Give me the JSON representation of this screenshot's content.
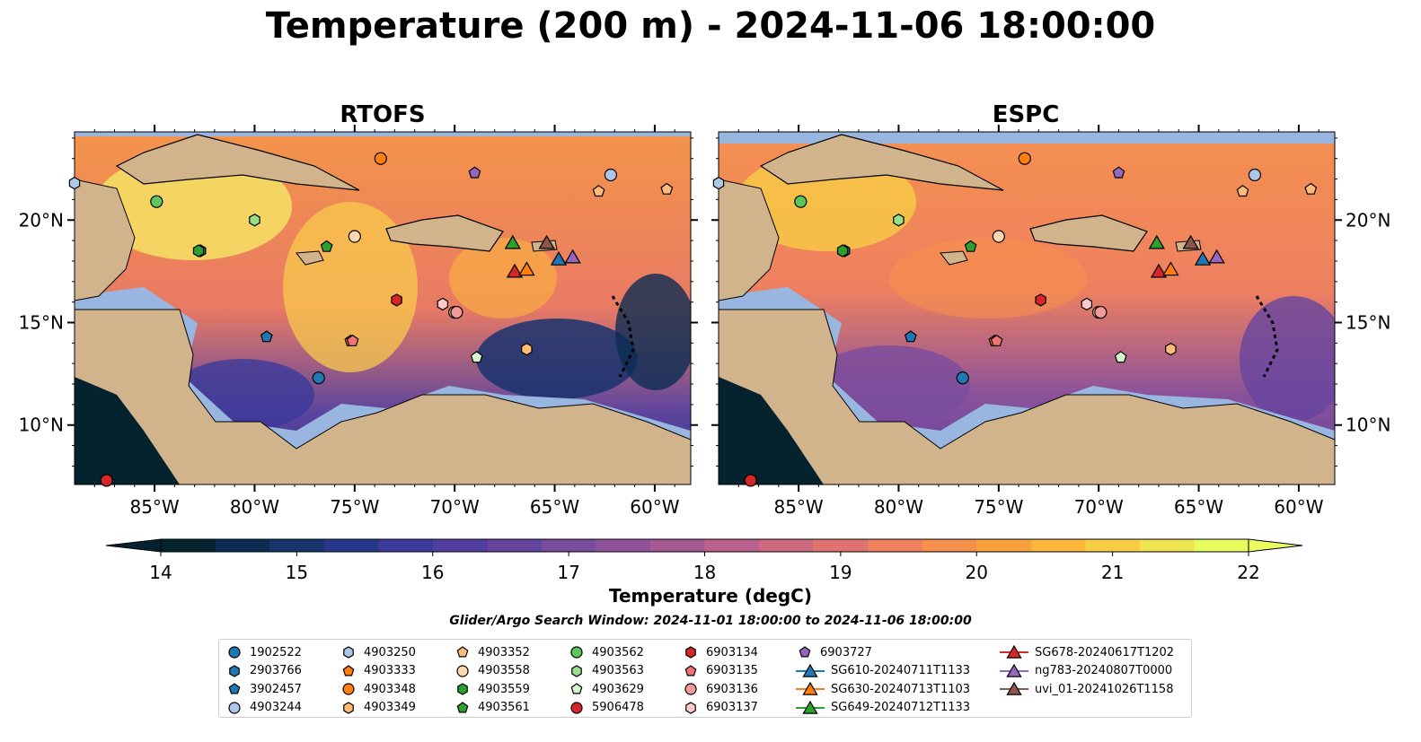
{
  "title": "Temperature (200 m) - 2024-11-06 18:00:00",
  "panels": [
    {
      "name": "RTOFS"
    },
    {
      "name": "ESPC"
    }
  ],
  "axes": {
    "lon_ticks": [
      "85°W",
      "80°W",
      "75°W",
      "70°W",
      "65°W",
      "60°W"
    ],
    "lat_ticks": [
      "20°N",
      "15°N",
      "10°N"
    ],
    "lon_range": [
      -89,
      -58.2
    ],
    "lat_range": [
      7.1,
      24.3
    ]
  },
  "colorbar": {
    "label": "Temperature (degC)",
    "ticks": [
      "14",
      "15",
      "16",
      "17",
      "18",
      "19",
      "20",
      "21",
      "22"
    ],
    "range": [
      14,
      22
    ],
    "extend": "both",
    "colormap": "thermal",
    "colors": [
      "#04232f",
      "#0b2d52",
      "#19336f",
      "#27388a",
      "#3b3a9a",
      "#513f9f",
      "#66459f",
      "#7a4c9d",
      "#8f539a",
      "#a55a95",
      "#ba618d",
      "#ce6a80",
      "#e07370",
      "#ee805e",
      "#f6904c",
      "#fba23f",
      "#fcb63c",
      "#f8cc45",
      "#f0e356",
      "#e8fc61"
    ]
  },
  "search_window": "Glider/Argo Search Window: 2024-11-01 18:00:00 to 2024-11-06 18:00:00",
  "legend": [
    {
      "label": "1902522",
      "marker": "circle",
      "color": "#1f77b4"
    },
    {
      "label": "2903766",
      "marker": "hexagon",
      "color": "#1f77b4"
    },
    {
      "label": "3902457",
      "marker": "pentagon",
      "color": "#1f77b4"
    },
    {
      "label": "4903244",
      "marker": "circle",
      "color": "#aec7e8"
    },
    {
      "label": "4903250",
      "marker": "hexagon",
      "color": "#aec7e8"
    },
    {
      "label": "4903333",
      "marker": "pentagon",
      "color": "#ff7f0e"
    },
    {
      "label": "4903348",
      "marker": "circle",
      "color": "#ff7f0e"
    },
    {
      "label": "4903349",
      "marker": "hexagon",
      "color": "#ffbb78"
    },
    {
      "label": "4903352",
      "marker": "pentagon",
      "color": "#ffbb78"
    },
    {
      "label": "4903558",
      "marker": "circle",
      "color": "#ffd8b1"
    },
    {
      "label": "4903559",
      "marker": "hexagon",
      "color": "#2ca02c"
    },
    {
      "label": "4903561",
      "marker": "pentagon",
      "color": "#2ca02c"
    },
    {
      "label": "4903562",
      "marker": "circle",
      "color": "#5cc85c"
    },
    {
      "label": "4903563",
      "marker": "hexagon",
      "color": "#98df8a"
    },
    {
      "label": "4903629",
      "marker": "pentagon",
      "color": "#d4f5cc"
    },
    {
      "label": "5906478",
      "marker": "circle",
      "color": "#d62728"
    },
    {
      "label": "6903134",
      "marker": "hexagon",
      "color": "#d62728"
    },
    {
      "label": "6903135",
      "marker": "pentagon",
      "color": "#f07474"
    },
    {
      "label": "6903136",
      "marker": "circle",
      "color": "#f59a9a"
    },
    {
      "label": "6903137",
      "marker": "hexagon",
      "color": "#ffc8c8"
    },
    {
      "label": "6903727",
      "marker": "pentagon",
      "color": "#9467bd"
    },
    {
      "label": "SG610-20240711T1133",
      "marker": "triangle-line",
      "color": "#1f77b4"
    },
    {
      "label": "SG630-20240713T1103",
      "marker": "triangle-line",
      "color": "#ff7f0e"
    },
    {
      "label": "SG649-20240712T1133",
      "marker": "triangle-line",
      "color": "#2ca02c"
    },
    {
      "label": "SG678-20240617T1202",
      "marker": "triangle-line",
      "color": "#d62728"
    },
    {
      "label": "ng783-20240807T0000",
      "marker": "triangle-line",
      "color": "#9467bd"
    },
    {
      "label": "uvi_01-20241026T1158",
      "marker": "triangle-line",
      "color": "#8c564b"
    }
  ],
  "observations": [
    {
      "id": "1902522",
      "lon": -76.8,
      "lat": 12.3
    },
    {
      "id": "2903766",
      "lon": -82.7,
      "lat": 18.5
    },
    {
      "id": "3902457",
      "lon": -79.4,
      "lat": 14.3
    },
    {
      "id": "4903244",
      "lon": -62.2,
      "lat": 22.2
    },
    {
      "id": "4903250",
      "lon": -89.0,
      "lat": 21.8
    },
    {
      "id": "4903333",
      "lon": -75.2,
      "lat": 14.1
    },
    {
      "id": "4903348",
      "lon": -73.7,
      "lat": 23.0
    },
    {
      "id": "4903349",
      "lon": -66.4,
      "lat": 13.7
    },
    {
      "id": "4903352",
      "lon": -62.8,
      "lat": 21.4
    },
    {
      "id": "4903352",
      "lon": -59.4,
      "lat": 21.5
    },
    {
      "id": "4903558",
      "lon": -75.0,
      "lat": 19.2
    },
    {
      "id": "4903558",
      "lon": -70.0,
      "lat": 15.5
    },
    {
      "id": "4903559",
      "lon": -82.8,
      "lat": 18.5
    },
    {
      "id": "4903561",
      "lon": -76.4,
      "lat": 18.7
    },
    {
      "id": "4903562",
      "lon": -84.9,
      "lat": 20.9
    },
    {
      "id": "4903563",
      "lon": -80.0,
      "lat": 20.0
    },
    {
      "id": "4903629",
      "lon": -68.9,
      "lat": 13.3
    },
    {
      "id": "5906478",
      "lon": -87.4,
      "lat": 7.3
    },
    {
      "id": "6903134",
      "lon": -72.9,
      "lat": 16.1
    },
    {
      "id": "6903135",
      "lon": -75.1,
      "lat": 14.1
    },
    {
      "id": "6903136",
      "lon": -69.9,
      "lat": 15.5
    },
    {
      "id": "6903137",
      "lon": -70.6,
      "lat": 15.9
    },
    {
      "id": "6903727",
      "lon": -69.0,
      "lat": 22.3
    },
    {
      "id": "SG649-20240712T1133",
      "lon": -67.1,
      "lat": 18.9
    },
    {
      "id": "SG678-20240617T1202",
      "lon": -67.0,
      "lat": 17.5
    },
    {
      "id": "SG630-20240713T1103",
      "lon": -66.4,
      "lat": 17.6
    },
    {
      "id": "uvi_01-20241026T1158",
      "lon": -65.4,
      "lat": 18.9
    },
    {
      "id": "SG610-20240711T1133",
      "lon": -64.8,
      "lat": 18.1
    },
    {
      "id": "ng783-20240807T0000",
      "lon": -64.1,
      "lat": 18.2
    }
  ]
}
